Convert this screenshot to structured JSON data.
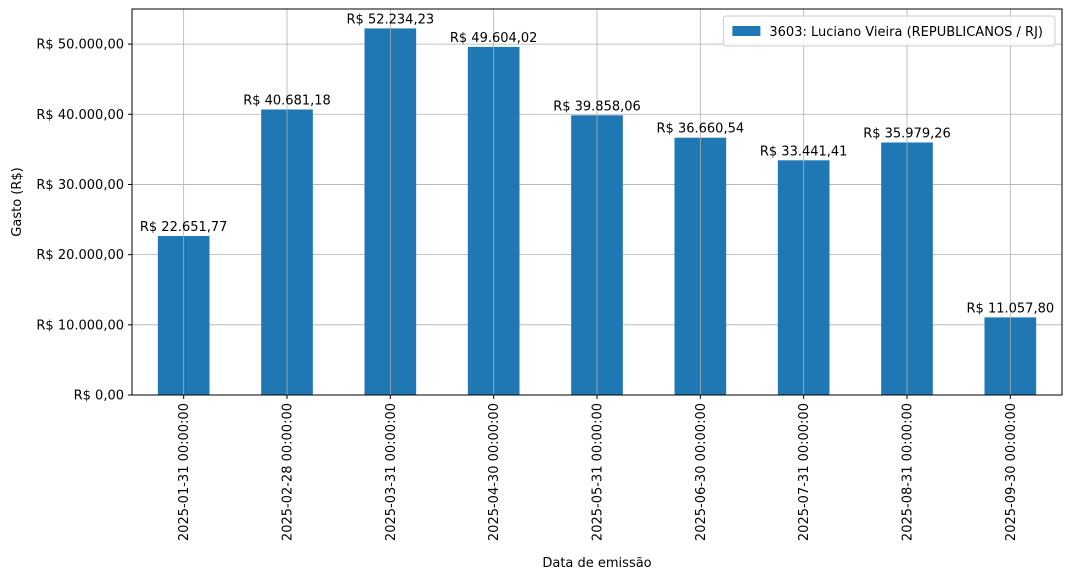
{
  "chart_data": {
    "type": "bar",
    "categories": [
      "2025-01-31 00:00:00",
      "2025-02-28 00:00:00",
      "2025-03-31 00:00:00",
      "2025-04-30 00:00:00",
      "2025-05-31 00:00:00",
      "2025-06-30 00:00:00",
      "2025-07-31 00:00:00",
      "2025-08-31 00:00:00",
      "2025-09-30 00:00:00"
    ],
    "series": [
      {
        "name": "3603: Luciano Vieira (REPUBLICANOS / RJ)",
        "values": [
          22651.77,
          40681.18,
          52234.23,
          49604.02,
          39858.06,
          36660.54,
          33441.41,
          35979.26,
          11057.8
        ],
        "data_labels": [
          "R$ 22.651,77",
          "R$ 40.681,18",
          "R$ 52.234,23",
          "R$ 49.604,02",
          "R$ 39.858,06",
          "R$ 36.660,54",
          "R$ 33.441,41",
          "R$ 35.979,26",
          "R$ 11.057,80"
        ],
        "color": "#1f77b4"
      }
    ],
    "title": "",
    "xlabel": "Data de emissão",
    "ylabel": "Gasto (R$)",
    "ylim": [
      0,
      55000
    ],
    "yticks": [
      0,
      10000,
      20000,
      30000,
      40000,
      50000
    ],
    "ytick_labels": [
      "R$ 0,00",
      "R$ 10.000,00",
      "R$ 20.000,00",
      "R$ 30.000,00",
      "R$ 40.000,00",
      "R$ 50.000,00"
    ],
    "grid": true,
    "legend": "top-right"
  }
}
